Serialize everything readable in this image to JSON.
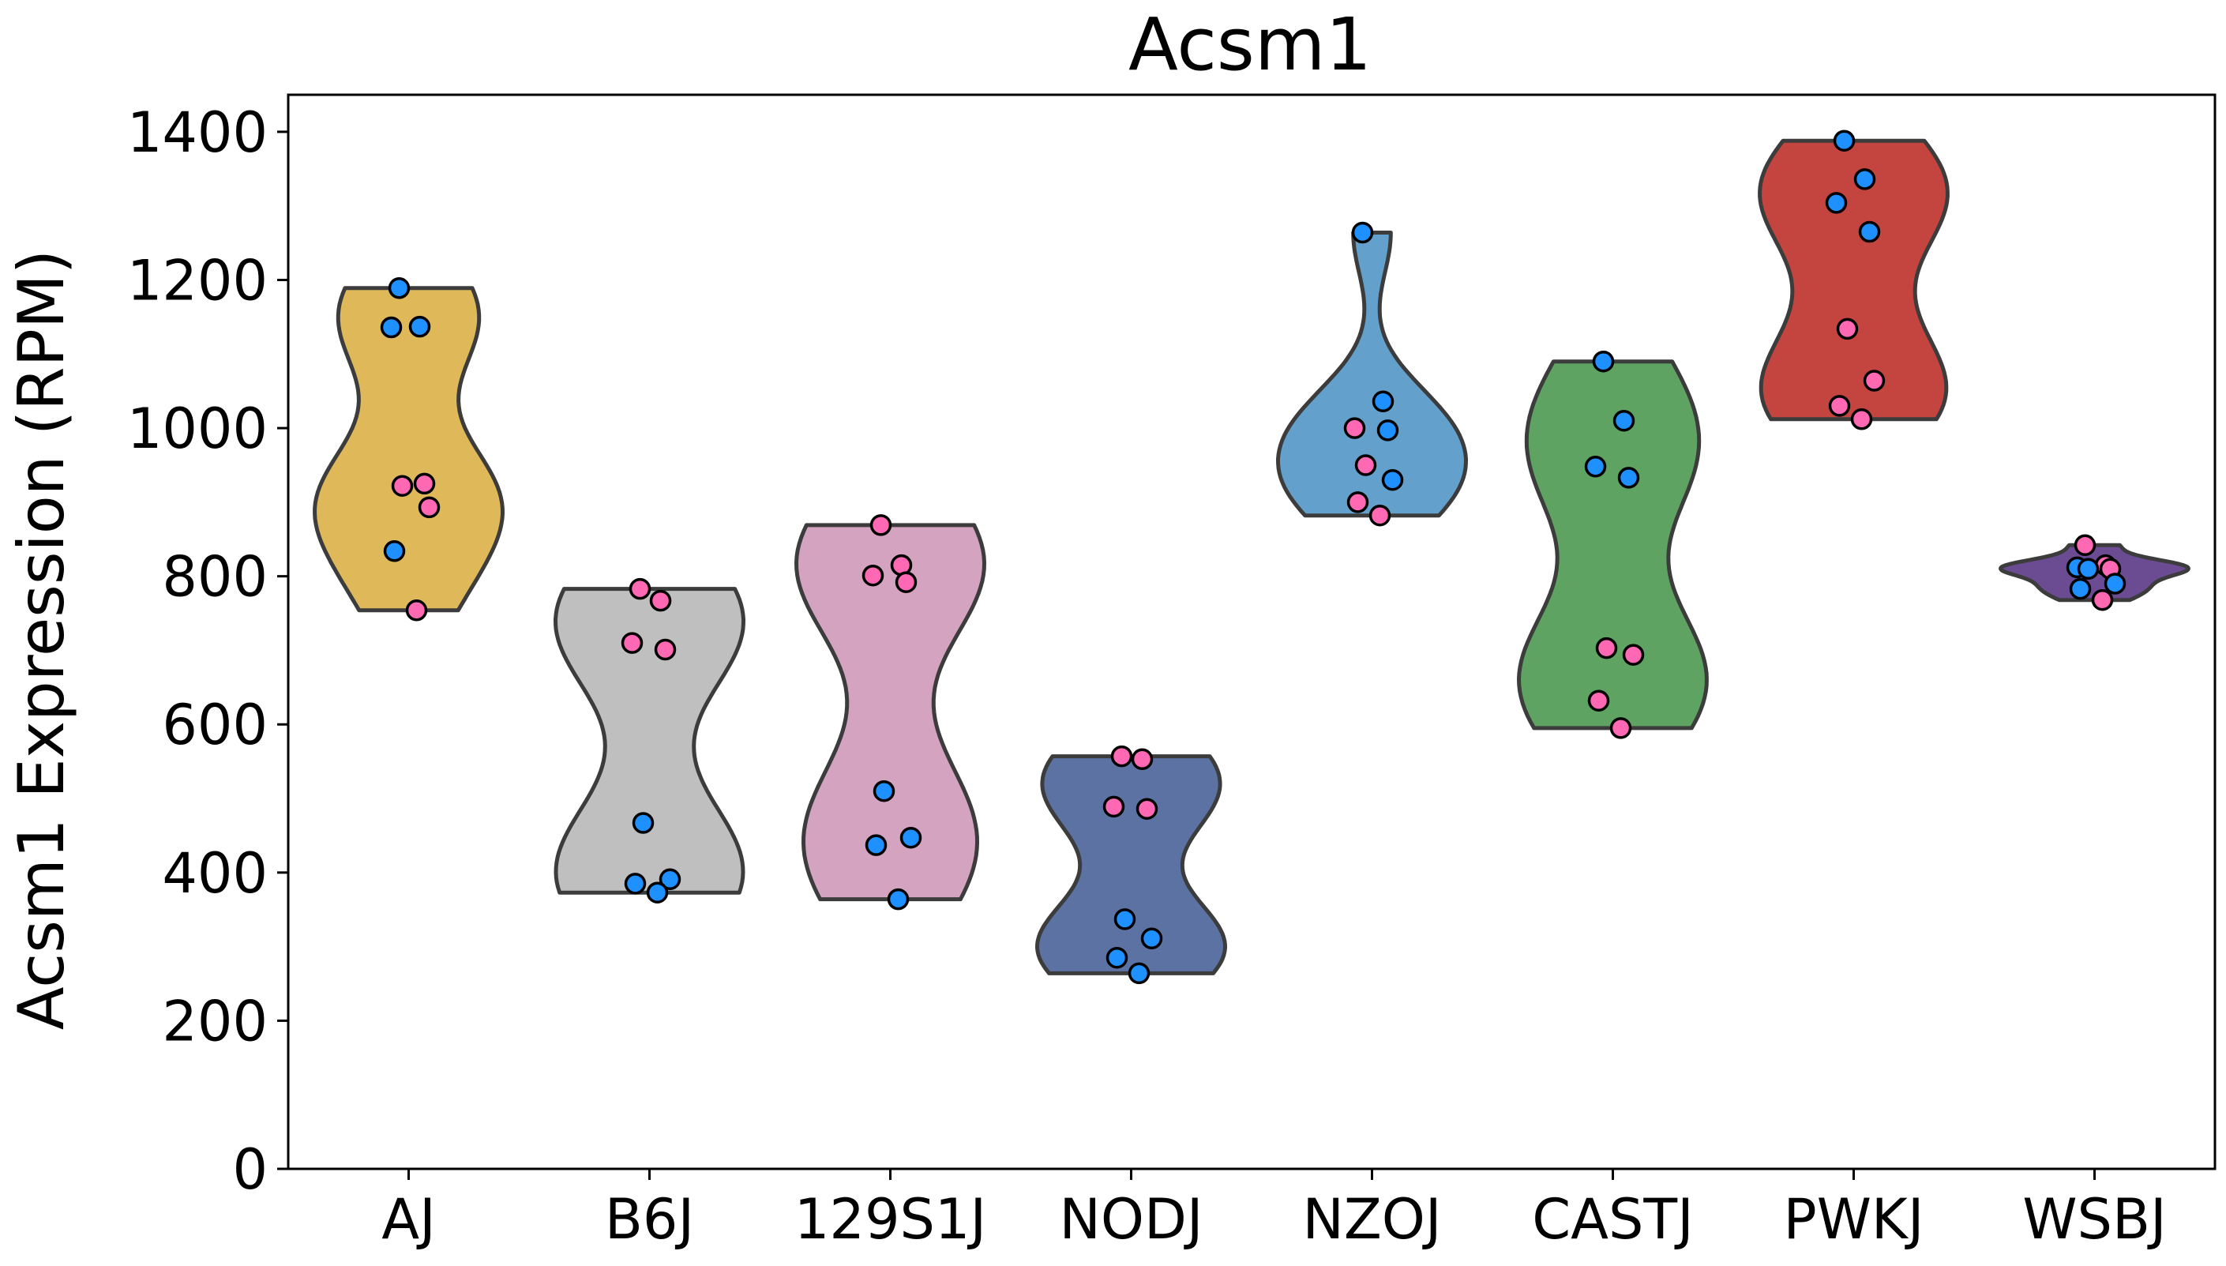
{
  "chart_data": {
    "type": "violin",
    "title": "Acsm1",
    "xlabel": "",
    "ylabel": "Acsm1 Expression (RPM)",
    "ylim": [
      0,
      1450
    ],
    "yticks": [
      0,
      200,
      400,
      600,
      800,
      1000,
      1200,
      1400
    ],
    "grid": false,
    "point_colors": {
      "blue": "#1e90ff",
      "pink": "#ff69b4"
    },
    "categories": [
      {
        "name": "AJ",
        "color": "#dfb85a",
        "points": [
          {
            "value": 1189,
            "color": "blue"
          },
          {
            "value": 1137,
            "color": "blue"
          },
          {
            "value": 1136,
            "color": "blue"
          },
          {
            "value": 925,
            "color": "pink"
          },
          {
            "value": 922,
            "color": "pink"
          },
          {
            "value": 893,
            "color": "pink"
          },
          {
            "value": 834,
            "color": "blue"
          },
          {
            "value": 754,
            "color": "pink"
          }
        ]
      },
      {
        "name": "B6J",
        "color": "#bfbfbf",
        "points": [
          {
            "value": 783,
            "color": "pink"
          },
          {
            "value": 767,
            "color": "pink"
          },
          {
            "value": 710,
            "color": "pink"
          },
          {
            "value": 701,
            "color": "pink"
          },
          {
            "value": 467,
            "color": "blue"
          },
          {
            "value": 391,
            "color": "blue"
          },
          {
            "value": 385,
            "color": "blue"
          },
          {
            "value": 373,
            "color": "blue"
          }
        ]
      },
      {
        "name": "129S1J",
        "color": "#d3a3bf",
        "points": [
          {
            "value": 869,
            "color": "pink"
          },
          {
            "value": 815,
            "color": "pink"
          },
          {
            "value": 801,
            "color": "pink"
          },
          {
            "value": 792,
            "color": "pink"
          },
          {
            "value": 510,
            "color": "blue"
          },
          {
            "value": 447,
            "color": "blue"
          },
          {
            "value": 437,
            "color": "blue"
          },
          {
            "value": 364,
            "color": "blue"
          }
        ]
      },
      {
        "name": "NODJ",
        "color": "#5b72a3",
        "points": [
          {
            "value": 557,
            "color": "pink"
          },
          {
            "value": 553,
            "color": "pink"
          },
          {
            "value": 489,
            "color": "pink"
          },
          {
            "value": 486,
            "color": "pink"
          },
          {
            "value": 337,
            "color": "blue"
          },
          {
            "value": 311,
            "color": "blue"
          },
          {
            "value": 285,
            "color": "blue"
          },
          {
            "value": 264,
            "color": "blue"
          }
        ]
      },
      {
        "name": "NZOJ",
        "color": "#63a1cc",
        "points": [
          {
            "value": 1264,
            "color": "blue"
          },
          {
            "value": 1036,
            "color": "blue"
          },
          {
            "value": 1000,
            "color": "pink"
          },
          {
            "value": 997,
            "color": "blue"
          },
          {
            "value": 950,
            "color": "pink"
          },
          {
            "value": 930,
            "color": "blue"
          },
          {
            "value": 900,
            "color": "pink"
          },
          {
            "value": 882,
            "color": "pink"
          }
        ]
      },
      {
        "name": "CASTJ",
        "color": "#5fa362",
        "points": [
          {
            "value": 1090,
            "color": "blue"
          },
          {
            "value": 1010,
            "color": "blue"
          },
          {
            "value": 948,
            "color": "blue"
          },
          {
            "value": 933,
            "color": "blue"
          },
          {
            "value": 703,
            "color": "pink"
          },
          {
            "value": 694,
            "color": "pink"
          },
          {
            "value": 632,
            "color": "pink"
          },
          {
            "value": 595,
            "color": "pink"
          }
        ]
      },
      {
        "name": "PWKJ",
        "color": "#c4453f",
        "points": [
          {
            "value": 1388,
            "color": "blue"
          },
          {
            "value": 1336,
            "color": "blue"
          },
          {
            "value": 1304,
            "color": "blue"
          },
          {
            "value": 1265,
            "color": "blue"
          },
          {
            "value": 1134,
            "color": "pink"
          },
          {
            "value": 1064,
            "color": "pink"
          },
          {
            "value": 1030,
            "color": "pink"
          },
          {
            "value": 1012,
            "color": "pink"
          }
        ]
      },
      {
        "name": "WSBJ",
        "color": "#6b4b92",
        "points": [
          {
            "value": 842,
            "color": "pink"
          },
          {
            "value": 815,
            "color": "pink"
          },
          {
            "value": 812,
            "color": "blue"
          },
          {
            "value": 810,
            "color": "pink"
          },
          {
            "value": 810,
            "color": "blue"
          },
          {
            "value": 790,
            "color": "blue"
          },
          {
            "value": 783,
            "color": "blue"
          },
          {
            "value": 768,
            "color": "pink"
          }
        ]
      }
    ]
  }
}
